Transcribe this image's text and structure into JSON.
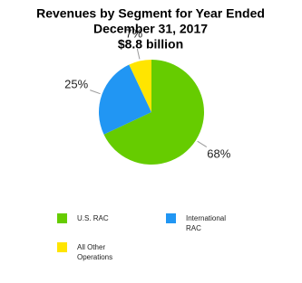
{
  "chart_data": {
    "type": "pie",
    "title": [
      "Revenues by Segment for Year Ended",
      "December 31, 2017"
    ],
    "subtitle": "$8.8 billion",
    "categories": [
      "U.S. RAC",
      "International RAC",
      "All Other Operations"
    ],
    "values": [
      68,
      25,
      7
    ],
    "value_labels": [
      "68%",
      "25%",
      "7%"
    ],
    "colors": [
      "#66cc00",
      "#2196f3",
      "#ffe500"
    ],
    "legend": "bottom"
  }
}
